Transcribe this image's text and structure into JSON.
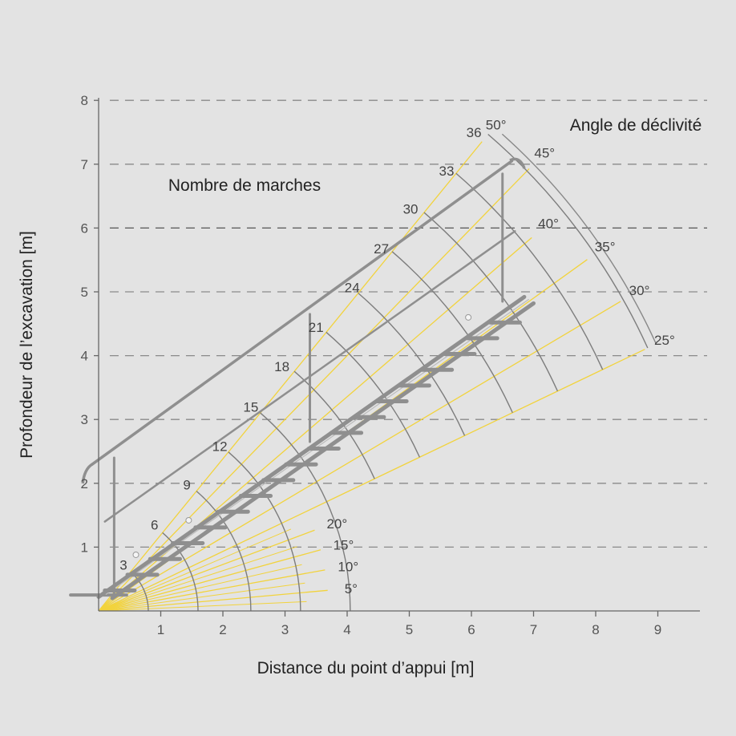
{
  "chart_data": {
    "type": "diagram",
    "xlabel": "Distance du point d’appui [m]",
    "ylabel": "Profondeur de l’excavation [m]",
    "xlim": [
      0,
      9
    ],
    "ylim": [
      0,
      8
    ],
    "x_ticks": [
      "1",
      "2",
      "3",
      "4",
      "5",
      "6",
      "7",
      "8",
      "9"
    ],
    "y_ticks": [
      "1",
      "2",
      "3",
      "4",
      "5",
      "6",
      "7",
      "8"
    ],
    "grid": "horizontal dashed",
    "angle_title": "Angle de déclivité",
    "steps_title": "Nombre de marches",
    "angles": [
      {
        "label": "50°",
        "deg": 50,
        "r": 9.6
      },
      {
        "label": "45°",
        "deg": 45,
        "r": 9.8
      },
      {
        "label": "40°",
        "deg": 40,
        "r": 9.1
      },
      {
        "label": "35°",
        "deg": 35,
        "r": 9.6
      },
      {
        "label": "30°",
        "deg": 30,
        "r": 9.7
      },
      {
        "label": "25°",
        "deg": 25,
        "r": 9.7
      },
      {
        "label": "20°",
        "deg": 20,
        "r": 3.7
      },
      {
        "label": "15°",
        "deg": 15,
        "r": 3.7
      },
      {
        "label": "10°",
        "deg": 10,
        "r": 3.7
      },
      {
        "label": "5°",
        "deg": 5,
        "r": 3.7
      }
    ],
    "fan_minor_deg": [
      2.5,
      7.5,
      12.5,
      17.5,
      22.5
    ],
    "step_arcs": [
      {
        "label": "3",
        "r": 0.8,
        "lx": 0.4,
        "ly": 0.72
      },
      {
        "label": "6",
        "r": 1.6,
        "lx": 0.9,
        "ly": 1.35
      },
      {
        "label": "9",
        "r": 2.45,
        "lx": 1.42,
        "ly": 1.98
      },
      {
        "label": "12",
        "r": 3.25,
        "lx": 1.95,
        "ly": 2.58
      },
      {
        "label": "15",
        "r": 4.05,
        "lx": 2.45,
        "ly": 3.2
      },
      {
        "label": "18",
        "r": 4.9,
        "lx": 2.95,
        "ly": 3.83
      },
      {
        "label": "21",
        "r": 5.7,
        "lx": 3.5,
        "ly": 4.45
      },
      {
        "label": "24",
        "r": 6.5,
        "lx": 4.08,
        "ly": 5.07
      },
      {
        "label": "27",
        "r": 7.35,
        "lx": 4.55,
        "ly": 5.68
      },
      {
        "label": "30",
        "r": 8.15,
        "lx": 5.02,
        "ly": 6.3
      },
      {
        "label": "33",
        "r": 8.95,
        "lx": 5.6,
        "ly": 6.9
      },
      {
        "label": "36",
        "r": 9.75,
        "lx": 6.04,
        "ly": 7.5
      }
    ]
  }
}
